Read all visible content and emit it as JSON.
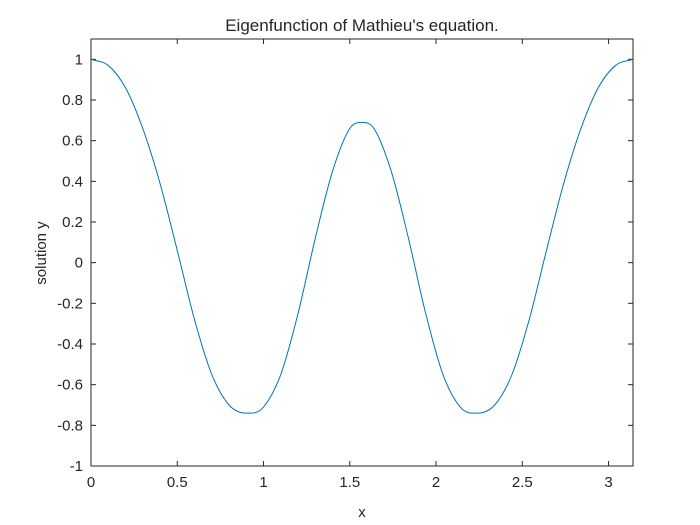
{
  "chart_data": {
    "type": "line",
    "title": "Eigenfunction of Mathieu's equation.",
    "xlabel": "x",
    "ylabel": "solution y",
    "xlim": [
      0,
      3.1416
    ],
    "ylim": [
      -1,
      1.1
    ],
    "xticks": [
      0,
      0.5,
      1,
      1.5,
      2,
      2.5,
      3
    ],
    "xtick_labels": [
      "0",
      "0.5",
      "1",
      "1.5",
      "2",
      "2.5",
      "3"
    ],
    "yticks": [
      -1,
      -0.8,
      -0.6,
      -0.4,
      -0.2,
      0,
      0.2,
      0.4,
      0.6,
      0.8,
      1
    ],
    "ytick_labels": [
      "-1",
      "-0.8",
      "-0.6",
      "-0.4",
      "-0.2",
      "0",
      "0.2",
      "0.4",
      "0.6",
      "0.8",
      "1"
    ],
    "grid": false,
    "series": [
      {
        "color": "#0072bd",
        "x": [
          0,
          0.1,
          0.2,
          0.3,
          0.4,
          0.5,
          0.6,
          0.7,
          0.8,
          0.9,
          0.93,
          1.0,
          1.1,
          1.2,
          1.3,
          1.4,
          1.5,
          1.5708,
          1.64,
          1.74,
          1.84,
          1.94,
          2.04,
          2.14,
          2.21,
          2.24,
          2.34,
          2.44,
          2.54,
          2.64,
          2.74,
          2.84,
          2.94,
          3.04,
          3.1416
        ],
        "y": [
          1.0,
          0.97,
          0.86,
          0.66,
          0.39,
          0.06,
          -0.28,
          -0.55,
          -0.7,
          -0.74,
          -0.74,
          -0.71,
          -0.55,
          -0.25,
          0.12,
          0.45,
          0.66,
          0.69,
          0.66,
          0.45,
          0.12,
          -0.25,
          -0.55,
          -0.71,
          -0.74,
          -0.74,
          -0.7,
          -0.55,
          -0.28,
          0.06,
          0.39,
          0.66,
          0.86,
          0.97,
          1.0
        ]
      }
    ]
  }
}
